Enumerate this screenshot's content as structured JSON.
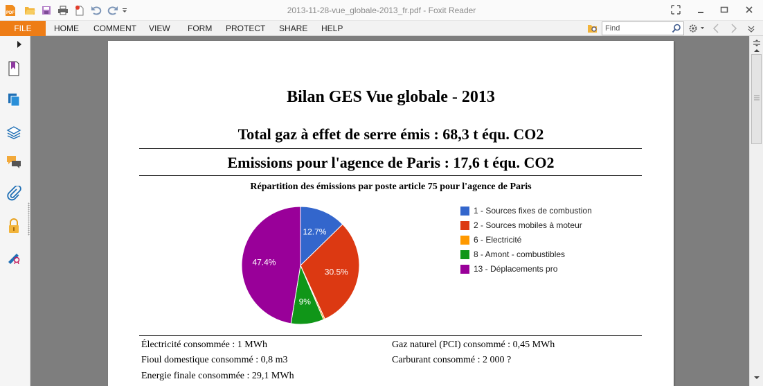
{
  "window": {
    "title": "2013-11-28-vue_globale-2013_fr.pdf - Foxit Reader"
  },
  "menu": {
    "file": "FILE",
    "items": [
      "HOME",
      "COMMENT",
      "VIEW",
      "FORM",
      "PROTECT",
      "SHARE",
      "HELP"
    ]
  },
  "search": {
    "placeholder": "Find"
  },
  "document": {
    "title": "Bilan GES Vue globale - 2013",
    "total": "Total gaz à effet de serre émis : 68,3 t équ. CO2",
    "agency": "Emissions pour l'agence de Paris : 17,6 t équ. CO2",
    "chart_heading": "Répartition des émissions par poste article 75 pour l'agence de Paris",
    "stats_left": [
      "Électricité consommée : 1 MWh",
      "Fioul domestique consommé : 0,8 m3",
      "Energie finale consommée : 29,1 MWh"
    ],
    "stats_right": [
      "Gaz naturel (PCI) consommé : 0,45 MWh",
      "Carburant consommé : 2 000 ?"
    ]
  },
  "chart_data": {
    "type": "pie",
    "categories": [
      "1 - Sources fixes de combustion",
      "2 - Sources mobiles à moteur",
      "6 - Electricité",
      "8 - Amont - combustibles",
      "13 - Déplacements pro"
    ],
    "values": [
      12.7,
      30.5,
      0.4,
      9,
      47.4
    ],
    "data_labels": [
      "12.7%",
      "30.5%",
      "",
      "9%",
      "47.4%"
    ],
    "colors": [
      "#3366cc",
      "#dc3912",
      "#ff9900",
      "#109618",
      "#990099"
    ],
    "legend_position": "right"
  }
}
